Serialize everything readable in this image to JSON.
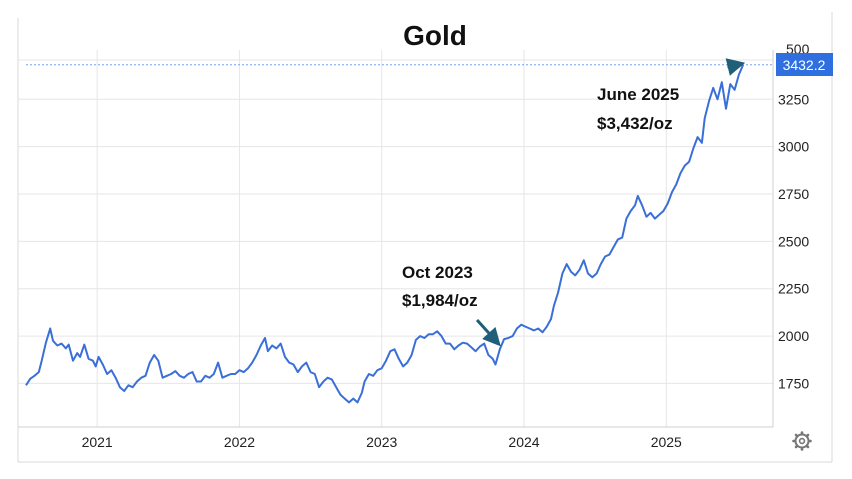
{
  "chart_data": {
    "type": "line",
    "title": "Gold",
    "xlabel": "",
    "ylabel": "",
    "ylim": [
      1520,
      3510
    ],
    "xlim": [
      2020.5,
      2025.75
    ],
    "yticks": [
      1750,
      2000,
      2250,
      2500,
      2750,
      3000,
      3250
    ],
    "ytick_labels": [
      "1750",
      "2000",
      "2250",
      "2500",
      "2750",
      "3000",
      "3250"
    ],
    "top_tick_partial": "500",
    "xticks": [
      2021,
      2022,
      2023,
      2024,
      2025
    ],
    "xtick_labels": [
      "2021",
      "2022",
      "2023",
      "2024",
      "2025"
    ],
    "grid": true,
    "last_value_label": "3432.2",
    "series": [
      {
        "color": "#3a6fd8",
        "points": [
          [
            2020.5,
            1740
          ],
          [
            2020.53,
            1775
          ],
          [
            2020.56,
            1790
          ],
          [
            2020.59,
            1810
          ],
          [
            2020.61,
            1870
          ],
          [
            2020.64,
            1965
          ],
          [
            2020.67,
            2040
          ],
          [
            2020.69,
            1975
          ],
          [
            2020.72,
            1950
          ],
          [
            2020.75,
            1960
          ],
          [
            2020.78,
            1935
          ],
          [
            2020.8,
            1955
          ],
          [
            2020.83,
            1870
          ],
          [
            2020.86,
            1910
          ],
          [
            2020.88,
            1890
          ],
          [
            2020.91,
            1955
          ],
          [
            2020.94,
            1880
          ],
          [
            2020.97,
            1870
          ],
          [
            2020.99,
            1840
          ],
          [
            2021.01,
            1890
          ],
          [
            2021.04,
            1850
          ],
          [
            2021.07,
            1800
          ],
          [
            2021.1,
            1820
          ],
          [
            2021.13,
            1780
          ],
          [
            2021.16,
            1730
          ],
          [
            2021.19,
            1710
          ],
          [
            2021.22,
            1740
          ],
          [
            2021.25,
            1730
          ],
          [
            2021.28,
            1760
          ],
          [
            2021.31,
            1780
          ],
          [
            2021.34,
            1790
          ],
          [
            2021.37,
            1860
          ],
          [
            2021.4,
            1900
          ],
          [
            2021.43,
            1870
          ],
          [
            2021.46,
            1780
          ],
          [
            2021.49,
            1790
          ],
          [
            2021.52,
            1800
          ],
          [
            2021.55,
            1815
          ],
          [
            2021.58,
            1790
          ],
          [
            2021.61,
            1780
          ],
          [
            2021.64,
            1800
          ],
          [
            2021.67,
            1810
          ],
          [
            2021.7,
            1760
          ],
          [
            2021.73,
            1760
          ],
          [
            2021.76,
            1790
          ],
          [
            2021.79,
            1780
          ],
          [
            2021.82,
            1800
          ],
          [
            2021.85,
            1860
          ],
          [
            2021.88,
            1780
          ],
          [
            2021.91,
            1790
          ],
          [
            2021.94,
            1800
          ],
          [
            2021.97,
            1800
          ],
          [
            2022.0,
            1820
          ],
          [
            2022.03,
            1810
          ],
          [
            2022.06,
            1830
          ],
          [
            2022.09,
            1860
          ],
          [
            2022.12,
            1900
          ],
          [
            2022.15,
            1950
          ],
          [
            2022.18,
            1990
          ],
          [
            2022.2,
            1920
          ],
          [
            2022.23,
            1950
          ],
          [
            2022.26,
            1935
          ],
          [
            2022.29,
            1960
          ],
          [
            2022.32,
            1890
          ],
          [
            2022.35,
            1860
          ],
          [
            2022.38,
            1850
          ],
          [
            2022.41,
            1810
          ],
          [
            2022.44,
            1840
          ],
          [
            2022.47,
            1860
          ],
          [
            2022.5,
            1810
          ],
          [
            2022.53,
            1800
          ],
          [
            2022.56,
            1730
          ],
          [
            2022.59,
            1760
          ],
          [
            2022.62,
            1780
          ],
          [
            2022.65,
            1770
          ],
          [
            2022.68,
            1730
          ],
          [
            2022.71,
            1690
          ],
          [
            2022.74,
            1670
          ],
          [
            2022.77,
            1650
          ],
          [
            2022.8,
            1670
          ],
          [
            2022.83,
            1650
          ],
          [
            2022.86,
            1700
          ],
          [
            2022.88,
            1760
          ],
          [
            2022.91,
            1800
          ],
          [
            2022.94,
            1790
          ],
          [
            2022.97,
            1820
          ],
          [
            2023.0,
            1830
          ],
          [
            2023.03,
            1870
          ],
          [
            2023.06,
            1920
          ],
          [
            2023.09,
            1930
          ],
          [
            2023.12,
            1880
          ],
          [
            2023.15,
            1840
          ],
          [
            2023.18,
            1860
          ],
          [
            2023.21,
            1900
          ],
          [
            2023.24,
            1980
          ],
          [
            2023.27,
            2000
          ],
          [
            2023.3,
            1990
          ],
          [
            2023.33,
            2010
          ],
          [
            2023.36,
            2010
          ],
          [
            2023.39,
            2025
          ],
          [
            2023.42,
            2000
          ],
          [
            2023.45,
            1960
          ],
          [
            2023.48,
            1960
          ],
          [
            2023.51,
            1930
          ],
          [
            2023.54,
            1950
          ],
          [
            2023.57,
            1965
          ],
          [
            2023.6,
            1960
          ],
          [
            2023.63,
            1940
          ],
          [
            2023.66,
            1920
          ],
          [
            2023.69,
            1945
          ],
          [
            2023.72,
            1960
          ],
          [
            2023.75,
            1900
          ],
          [
            2023.78,
            1880
          ],
          [
            2023.8,
            1850
          ],
          [
            2023.83,
            1930
          ],
          [
            2023.86,
            1984
          ],
          [
            2023.89,
            1990
          ],
          [
            2023.92,
            2000
          ],
          [
            2023.95,
            2040
          ],
          [
            2023.98,
            2060
          ],
          [
            2024.01,
            2050
          ],
          [
            2024.04,
            2040
          ],
          [
            2024.07,
            2030
          ],
          [
            2024.1,
            2040
          ],
          [
            2024.13,
            2020
          ],
          [
            2024.16,
            2050
          ],
          [
            2024.19,
            2090
          ],
          [
            2024.21,
            2160
          ],
          [
            2024.24,
            2230
          ],
          [
            2024.27,
            2330
          ],
          [
            2024.3,
            2380
          ],
          [
            2024.33,
            2340
          ],
          [
            2024.36,
            2320
          ],
          [
            2024.39,
            2350
          ],
          [
            2024.42,
            2400
          ],
          [
            2024.45,
            2330
          ],
          [
            2024.48,
            2310
          ],
          [
            2024.51,
            2330
          ],
          [
            2024.54,
            2380
          ],
          [
            2024.57,
            2420
          ],
          [
            2024.6,
            2430
          ],
          [
            2024.63,
            2470
          ],
          [
            2024.66,
            2510
          ],
          [
            2024.69,
            2520
          ],
          [
            2024.72,
            2620
          ],
          [
            2024.75,
            2660
          ],
          [
            2024.78,
            2690
          ],
          [
            2024.8,
            2740
          ],
          [
            2024.83,
            2690
          ],
          [
            2024.86,
            2630
          ],
          [
            2024.89,
            2650
          ],
          [
            2024.92,
            2620
          ],
          [
            2024.95,
            2640
          ],
          [
            2024.98,
            2660
          ],
          [
            2025.01,
            2700
          ],
          [
            2025.04,
            2760
          ],
          [
            2025.07,
            2800
          ],
          [
            2025.1,
            2860
          ],
          [
            2025.13,
            2900
          ],
          [
            2025.16,
            2920
          ],
          [
            2025.19,
            2990
          ],
          [
            2025.22,
            3050
          ],
          [
            2025.25,
            3020
          ],
          [
            2025.27,
            3150
          ],
          [
            2025.3,
            3240
          ],
          [
            2025.33,
            3310
          ],
          [
            2025.36,
            3250
          ],
          [
            2025.39,
            3340
          ],
          [
            2025.42,
            3200
          ],
          [
            2025.45,
            3330
          ],
          [
            2025.48,
            3300
          ],
          [
            2025.51,
            3380
          ],
          [
            2025.54,
            3432
          ]
        ]
      }
    ],
    "annotations": [
      {
        "line1": "June 2025",
        "line2": "$3,432/oz",
        "from": [
          2025.43,
          3420
        ],
        "to": [
          2025.53,
          3438
        ]
      },
      {
        "line1": "Oct 2023",
        "line2": "$1,984/oz",
        "from": [
          2023.67,
          2085
        ],
        "to": [
          2023.82,
          1960
        ]
      }
    ]
  },
  "colors": {
    "line": "#3a6fd8",
    "badge": "#2f6fe0",
    "arrow": "#1f5f78",
    "grid": "#e6e6e6",
    "dotted": "#7aa0ea"
  },
  "icons": {
    "settings": "gear-icon"
  }
}
